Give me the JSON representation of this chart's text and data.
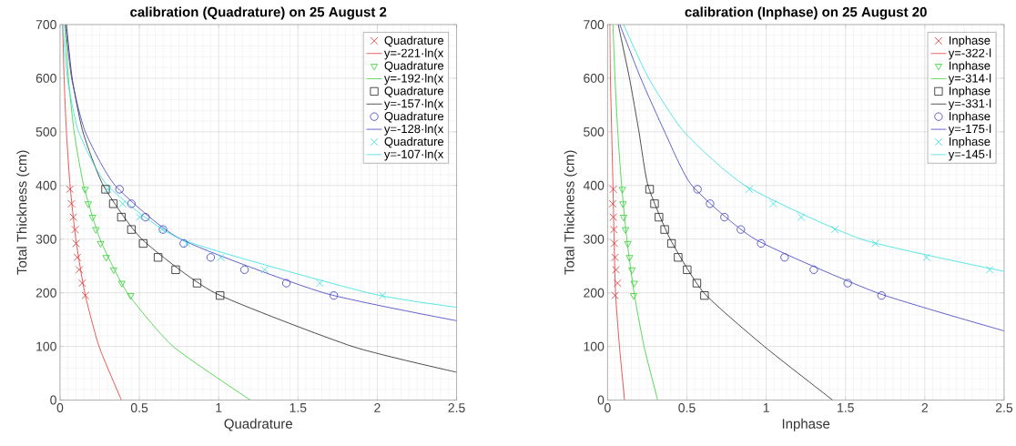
{
  "chart_data": [
    {
      "type": "scatter",
      "title": "calibration (Quadrature) on 25 August 2",
      "xlabel": "Quadrature",
      "ylabel": "Total Thickness (cm)",
      "xlim": [
        0,
        2.5
      ],
      "ylim": [
        0,
        700
      ],
      "xticks": [
        0,
        0.5,
        1,
        1.5,
        2,
        2.5
      ],
      "yticks": [
        0,
        100,
        200,
        300,
        400,
        500,
        600,
        700
      ],
      "grid": true,
      "legend": "top right",
      "series": [
        {
          "name": "Quadrature",
          "color": "#e03030",
          "marker": "cross",
          "x": [
            0.062,
            0.072,
            0.084,
            0.095,
            0.101,
            0.109,
            0.121,
            0.14,
            0.16
          ],
          "values": [
            393,
            366,
            341,
            318,
            292,
            266,
            243,
            218,
            195
          ]
        },
        {
          "type": "line",
          "name": "y=-221·ln(x",
          "color": "#e03030",
          "marker": "none",
          "x": [
            0.0163,
            0.0256,
            0.0402,
            0.0633,
            0.0995,
            0.156,
            0.246,
            0.387
          ],
          "values": [
            700,
            600,
            500,
            400,
            300,
            200,
            100,
            0
          ]
        },
        {
          "name": "Quadrature",
          "color": "#30d030",
          "marker": "triangle",
          "x": [
            0.158,
            0.178,
            0.205,
            0.226,
            0.256,
            0.291,
            0.338,
            0.389,
            0.445
          ],
          "values": [
            393,
            366,
            341,
            318,
            292,
            266,
            243,
            218,
            195
          ]
        },
        {
          "type": "line",
          "name": "y=-192·ln(x",
          "color": "#30d030",
          "marker": "none",
          "x": [
            0.0313,
            0.0527,
            0.0888,
            0.149,
            0.252,
            0.424,
            0.713,
            1.2
          ],
          "values": [
            700,
            600,
            500,
            400,
            300,
            200,
            100,
            0
          ]
        },
        {
          "name": "Quadrature",
          "color": "#202020",
          "marker": "square",
          "x": [
            0.287,
            0.336,
            0.387,
            0.45,
            0.524,
            0.618,
            0.729,
            0.864,
            1.009
          ],
          "values": [
            393,
            366,
            341,
            318,
            292,
            266,
            243,
            218,
            195
          ]
        },
        {
          "type": "line",
          "name": "y=-157·ln(x",
          "color": "#202020",
          "marker": "none",
          "x": [
            0.0404,
            0.0763,
            0.144,
            0.273,
            0.516,
            0.975,
            1.843,
            2.5
          ],
          "values": [
            700,
            600,
            500,
            400,
            300,
            200,
            100,
            52
          ]
        },
        {
          "name": "Quadrature",
          "color": "#3a3ac0",
          "marker": "circle",
          "x": [
            0.375,
            0.45,
            0.539,
            0.649,
            0.78,
            0.95,
            1.163,
            1.427,
            1.726
          ],
          "values": [
            393,
            366,
            341,
            318,
            292,
            266,
            243,
            218,
            195
          ]
        },
        {
          "type": "line",
          "name": "y=-128·ln(x",
          "color": "#3a3ac0",
          "marker": "none",
          "x": [
            0.0334,
            0.073,
            0.159,
            0.348,
            0.761,
            1.662,
            2.5
          ],
          "values": [
            700,
            600,
            500,
            400,
            300,
            200,
            148
          ]
        },
        {
          "name": "Quadrature",
          "color": "#30e0e0",
          "marker": "cross",
          "x": [
            0.301,
            0.395,
            0.502,
            0.645,
            0.799,
            1.014,
            1.29,
            1.638,
            2.033
          ],
          "values": [
            393,
            366,
            341,
            318,
            292,
            266,
            243,
            218,
            195
          ]
        },
        {
          "type": "line",
          "name": "y=-107·ln(x",
          "color": "#30e0e0",
          "marker": "none",
          "x": [
            0.0181,
            0.0462,
            0.1176,
            0.3,
            0.763,
            1.942,
            2.5
          ],
          "values": [
            700,
            600,
            500,
            400,
            300,
            200,
            173
          ]
        }
      ]
    },
    {
      "type": "scatter",
      "title": "calibration (Inphase) on 25 August 20",
      "xlabel": "Inphase",
      "ylabel": "Total Thickness (cm)",
      "xlim": [
        0,
        2.5
      ],
      "ylim": [
        0,
        700
      ],
      "xticks": [
        0,
        0.5,
        1,
        1.5,
        2,
        2.5
      ],
      "yticks": [
        0,
        100,
        200,
        300,
        400,
        500,
        600,
        700
      ],
      "grid": true,
      "legend": "top right",
      "series": [
        {
          "name": "Inphase",
          "color": "#e03030",
          "marker": "cross",
          "x": [
            0.036,
            0.032,
            0.036,
            0.04,
            0.043,
            0.047,
            0.053,
            0.063,
            0.047
          ],
          "values": [
            393,
            366,
            341,
            318,
            292,
            266,
            243,
            218,
            195
          ]
        },
        {
          "type": "line",
          "name": "y=-322·l",
          "color": "#e03030",
          "marker": "none",
          "x": [
            0.014,
            0.018,
            0.034,
            0.041,
            0.05,
            0.075,
            0.107
          ],
          "values": [
            700,
            600,
            400,
            300,
            200,
            100,
            0
          ]
        },
        {
          "name": "Inphase",
          "color": "#30d030",
          "marker": "triangle",
          "x": [
            0.093,
            0.097,
            0.101,
            0.113,
            0.128,
            0.138,
            0.154,
            0.168,
            0.164
          ],
          "values": [
            393,
            366,
            341,
            318,
            292,
            266,
            243,
            218,
            195
          ]
        },
        {
          "type": "line",
          "name": "y=-314·l",
          "color": "#30d030",
          "marker": "none",
          "x": [
            0.034,
            0.0467,
            0.0643,
            0.0884,
            0.1216,
            0.167,
            0.23,
            0.316
          ],
          "values": [
            700,
            600,
            500,
            400,
            300,
            200,
            100,
            0
          ]
        },
        {
          "name": "Inphase",
          "color": "#202020",
          "marker": "square",
          "x": [
            0.265,
            0.296,
            0.324,
            0.36,
            0.403,
            0.445,
            0.502,
            0.563,
            0.611
          ],
          "values": [
            393,
            366,
            341,
            318,
            292,
            266,
            243,
            218,
            195
          ]
        },
        {
          "type": "line",
          "name": "y=-331·l",
          "color": "#202020",
          "marker": "none",
          "x": [
            0.067,
            0.138,
            0.198,
            0.255,
            0.395,
            0.607,
            0.988,
            1.419
          ],
          "values": [
            700,
            600,
            500,
            400,
            300,
            200,
            100,
            0
          ]
        },
        {
          "name": "Inphase",
          "color": "#3a3ac0",
          "marker": "circle",
          "x": [
            0.567,
            0.646,
            0.737,
            0.84,
            0.968,
            1.116,
            1.3,
            1.514,
            1.727
          ],
          "values": [
            393,
            366,
            341,
            318,
            292,
            266,
            243,
            218,
            195
          ]
        },
        {
          "type": "line",
          "name": "y=-175·l",
          "color": "#3a3ac0",
          "marker": "none",
          "x": [
            0.077,
            0.209,
            0.36,
            0.532,
            0.93,
            1.7,
            2.5
          ],
          "values": [
            700,
            600,
            500,
            400,
            300,
            200,
            129
          ]
        },
        {
          "name": "Inphase",
          "color": "#30e0e0",
          "marker": "cross",
          "x": [
            0.893,
            1.045,
            1.221,
            1.433,
            1.689,
            2.011,
            2.409
          ],
          "values": [
            393,
            366,
            341,
            318,
            292,
            266,
            243
          ]
        },
        {
          "type": "line",
          "name": "y=-145·l",
          "color": "#30e0e0",
          "marker": "none",
          "x": [
            0.101,
            0.259,
            0.482,
            0.867,
            1.6,
            2.5
          ],
          "values": [
            700,
            600,
            500,
            400,
            300,
            240
          ]
        }
      ]
    }
  ]
}
